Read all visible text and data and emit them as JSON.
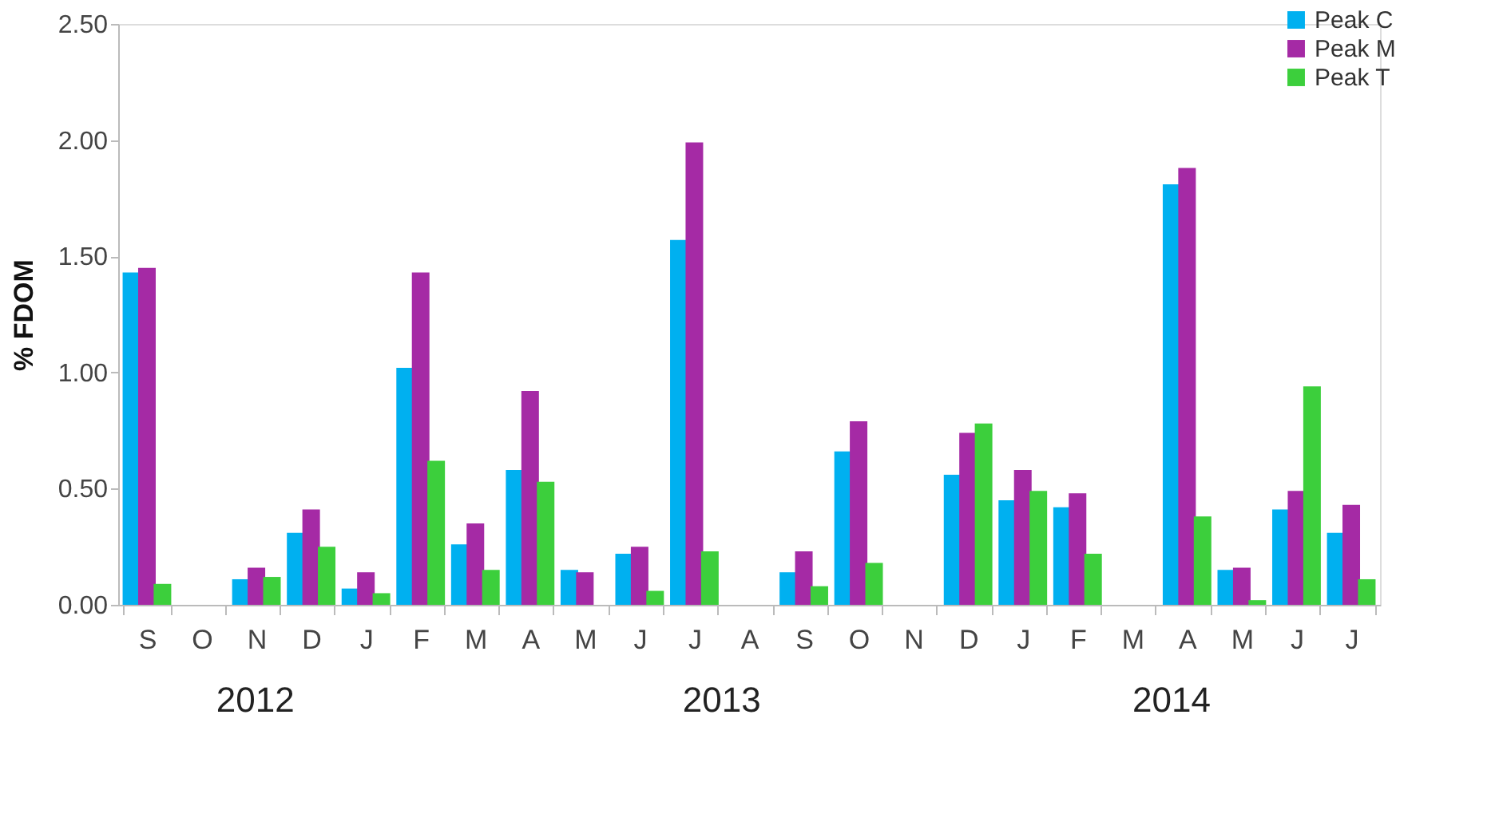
{
  "chart_data": {
    "type": "bar",
    "ylabel": "% FDOM",
    "categories": [
      "S",
      "O",
      "N",
      "D",
      "J",
      "F",
      "M",
      "A",
      "M",
      "J",
      "J",
      "A",
      "S",
      "O",
      "N",
      "D",
      "J",
      "F",
      "M",
      "A",
      "M",
      "J",
      "J"
    ],
    "series": [
      {
        "name": "Peak C",
        "color": "#00b0f0",
        "values": [
          1.43,
          null,
          0.11,
          0.31,
          0.07,
          1.02,
          0.26,
          0.58,
          0.15,
          0.22,
          1.57,
          null,
          0.14,
          0.66,
          null,
          0.56,
          0.45,
          0.42,
          null,
          1.81,
          0.15,
          0.41,
          0.31
        ]
      },
      {
        "name": "Peak M",
        "color": "#a52aa5",
        "values": [
          1.45,
          null,
          0.16,
          0.41,
          0.14,
          1.43,
          0.35,
          0.92,
          0.14,
          0.25,
          1.99,
          null,
          0.23,
          0.79,
          null,
          0.74,
          0.58,
          0.48,
          null,
          1.88,
          0.16,
          0.49,
          0.43
        ]
      },
      {
        "name": "Peak T",
        "color": "#3ccf3c",
        "values": [
          0.09,
          null,
          0.12,
          0.25,
          0.05,
          0.62,
          0.15,
          0.53,
          null,
          0.06,
          0.23,
          null,
          0.08,
          0.18,
          null,
          0.78,
          0.49,
          0.22,
          null,
          0.38,
          0.02,
          0.94,
          0.11
        ]
      }
    ],
    "ylim": [
      0,
      2.5
    ],
    "yticks": [
      {
        "value": 0,
        "label": "0.00"
      },
      {
        "value": 0.5,
        "label": "0.50"
      },
      {
        "value": 1,
        "label": "1.00"
      },
      {
        "value": 1.5,
        "label": "1.50"
      },
      {
        "value": 2,
        "label": "2.00"
      },
      {
        "value": 2.5,
        "label": "2.50"
      }
    ],
    "annotations": [
      "2012",
      "2013",
      "2014"
    ],
    "grid": false,
    "legend": "top right"
  }
}
